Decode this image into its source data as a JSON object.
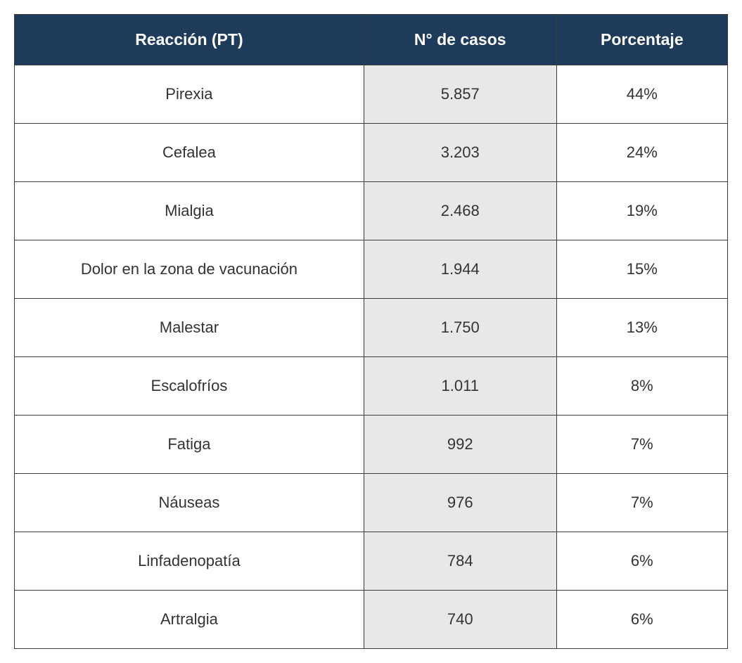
{
  "table": {
    "header_bg": "#1f3b5c",
    "header_text_color": "#ffffff",
    "cell_text_color": "#333333",
    "border_color": "#3a3a3a",
    "shaded_bg": "#e8e8e8",
    "header_fontsize": 23,
    "cell_fontsize": 22,
    "columns": [
      {
        "label": "Reacción (PT)",
        "width_pct": 49,
        "shaded": false
      },
      {
        "label": "N° de casos",
        "width_pct": 27,
        "shaded": true
      },
      {
        "label": "Porcentaje",
        "width_pct": 24,
        "shaded": false
      }
    ],
    "rows": [
      {
        "reaccion": "Pirexia",
        "casos": "5.857",
        "pct": "44%"
      },
      {
        "reaccion": "Cefalea",
        "casos": "3.203",
        "pct": "24%"
      },
      {
        "reaccion": "Mialgia",
        "casos": "2.468",
        "pct": "19%"
      },
      {
        "reaccion": "Dolor en la zona de vacunación",
        "casos": "1.944",
        "pct": "15%"
      },
      {
        "reaccion": "Malestar",
        "casos": "1.750",
        "pct": "13%"
      },
      {
        "reaccion": "Escalofríos",
        "casos": "1.011",
        "pct": "8%"
      },
      {
        "reaccion": "Fatiga",
        "casos": "992",
        "pct": "7%"
      },
      {
        "reaccion": "Náuseas",
        "casos": "976",
        "pct": "7%"
      },
      {
        "reaccion": "Linfadenopatía",
        "casos": "784",
        "pct": "6%"
      },
      {
        "reaccion": "Artralgia",
        "casos": "740",
        "pct": "6%"
      }
    ]
  }
}
